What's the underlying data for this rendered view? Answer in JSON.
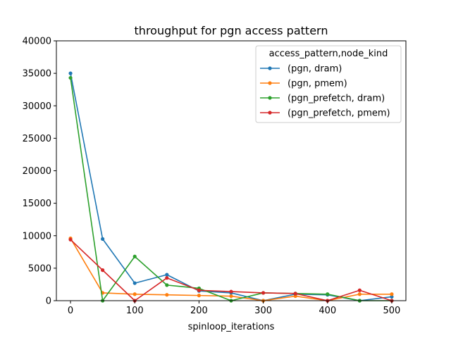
{
  "chart_data": {
    "type": "line",
    "title": "throughput for pgn access pattern",
    "xlabel": "spinloop_iterations",
    "ylabel": "",
    "xlim": [
      -22,
      522
    ],
    "ylim": [
      0,
      40000
    ],
    "x_ticks": [
      0,
      100,
      200,
      300,
      400,
      500
    ],
    "y_ticks": [
      0,
      5000,
      10000,
      15000,
      20000,
      25000,
      30000,
      35000,
      40000
    ],
    "grid": false,
    "legend": {
      "title": "access_pattern,node_kind",
      "placement": "top-right"
    },
    "x": [
      0,
      50,
      100,
      150,
      200,
      250,
      300,
      350,
      400,
      450,
      500
    ],
    "series": [
      {
        "name": "(pgn, dram)",
        "color": "#1f77b4",
        "values": [
          35000,
          9500,
          2700,
          4000,
          1500,
          1200,
          0,
          1000,
          900,
          0,
          600
        ]
      },
      {
        "name": "(pgn, pmem)",
        "color": "#ff7f0e",
        "values": [
          9600,
          1200,
          1000,
          900,
          800,
          700,
          0,
          700,
          0,
          1000,
          1000
        ]
      },
      {
        "name": "(pgn_prefetch, dram)",
        "color": "#2ca02c",
        "values": [
          34300,
          0,
          6800,
          2400,
          1900,
          0,
          1200,
          1100,
          1000,
          0,
          0
        ]
      },
      {
        "name": "(pgn_prefetch, pmem)",
        "color": "#d62728",
        "values": [
          9400,
          4700,
          0,
          3500,
          1600,
          1400,
          1200,
          1100,
          0,
          1600,
          0
        ]
      }
    ]
  }
}
